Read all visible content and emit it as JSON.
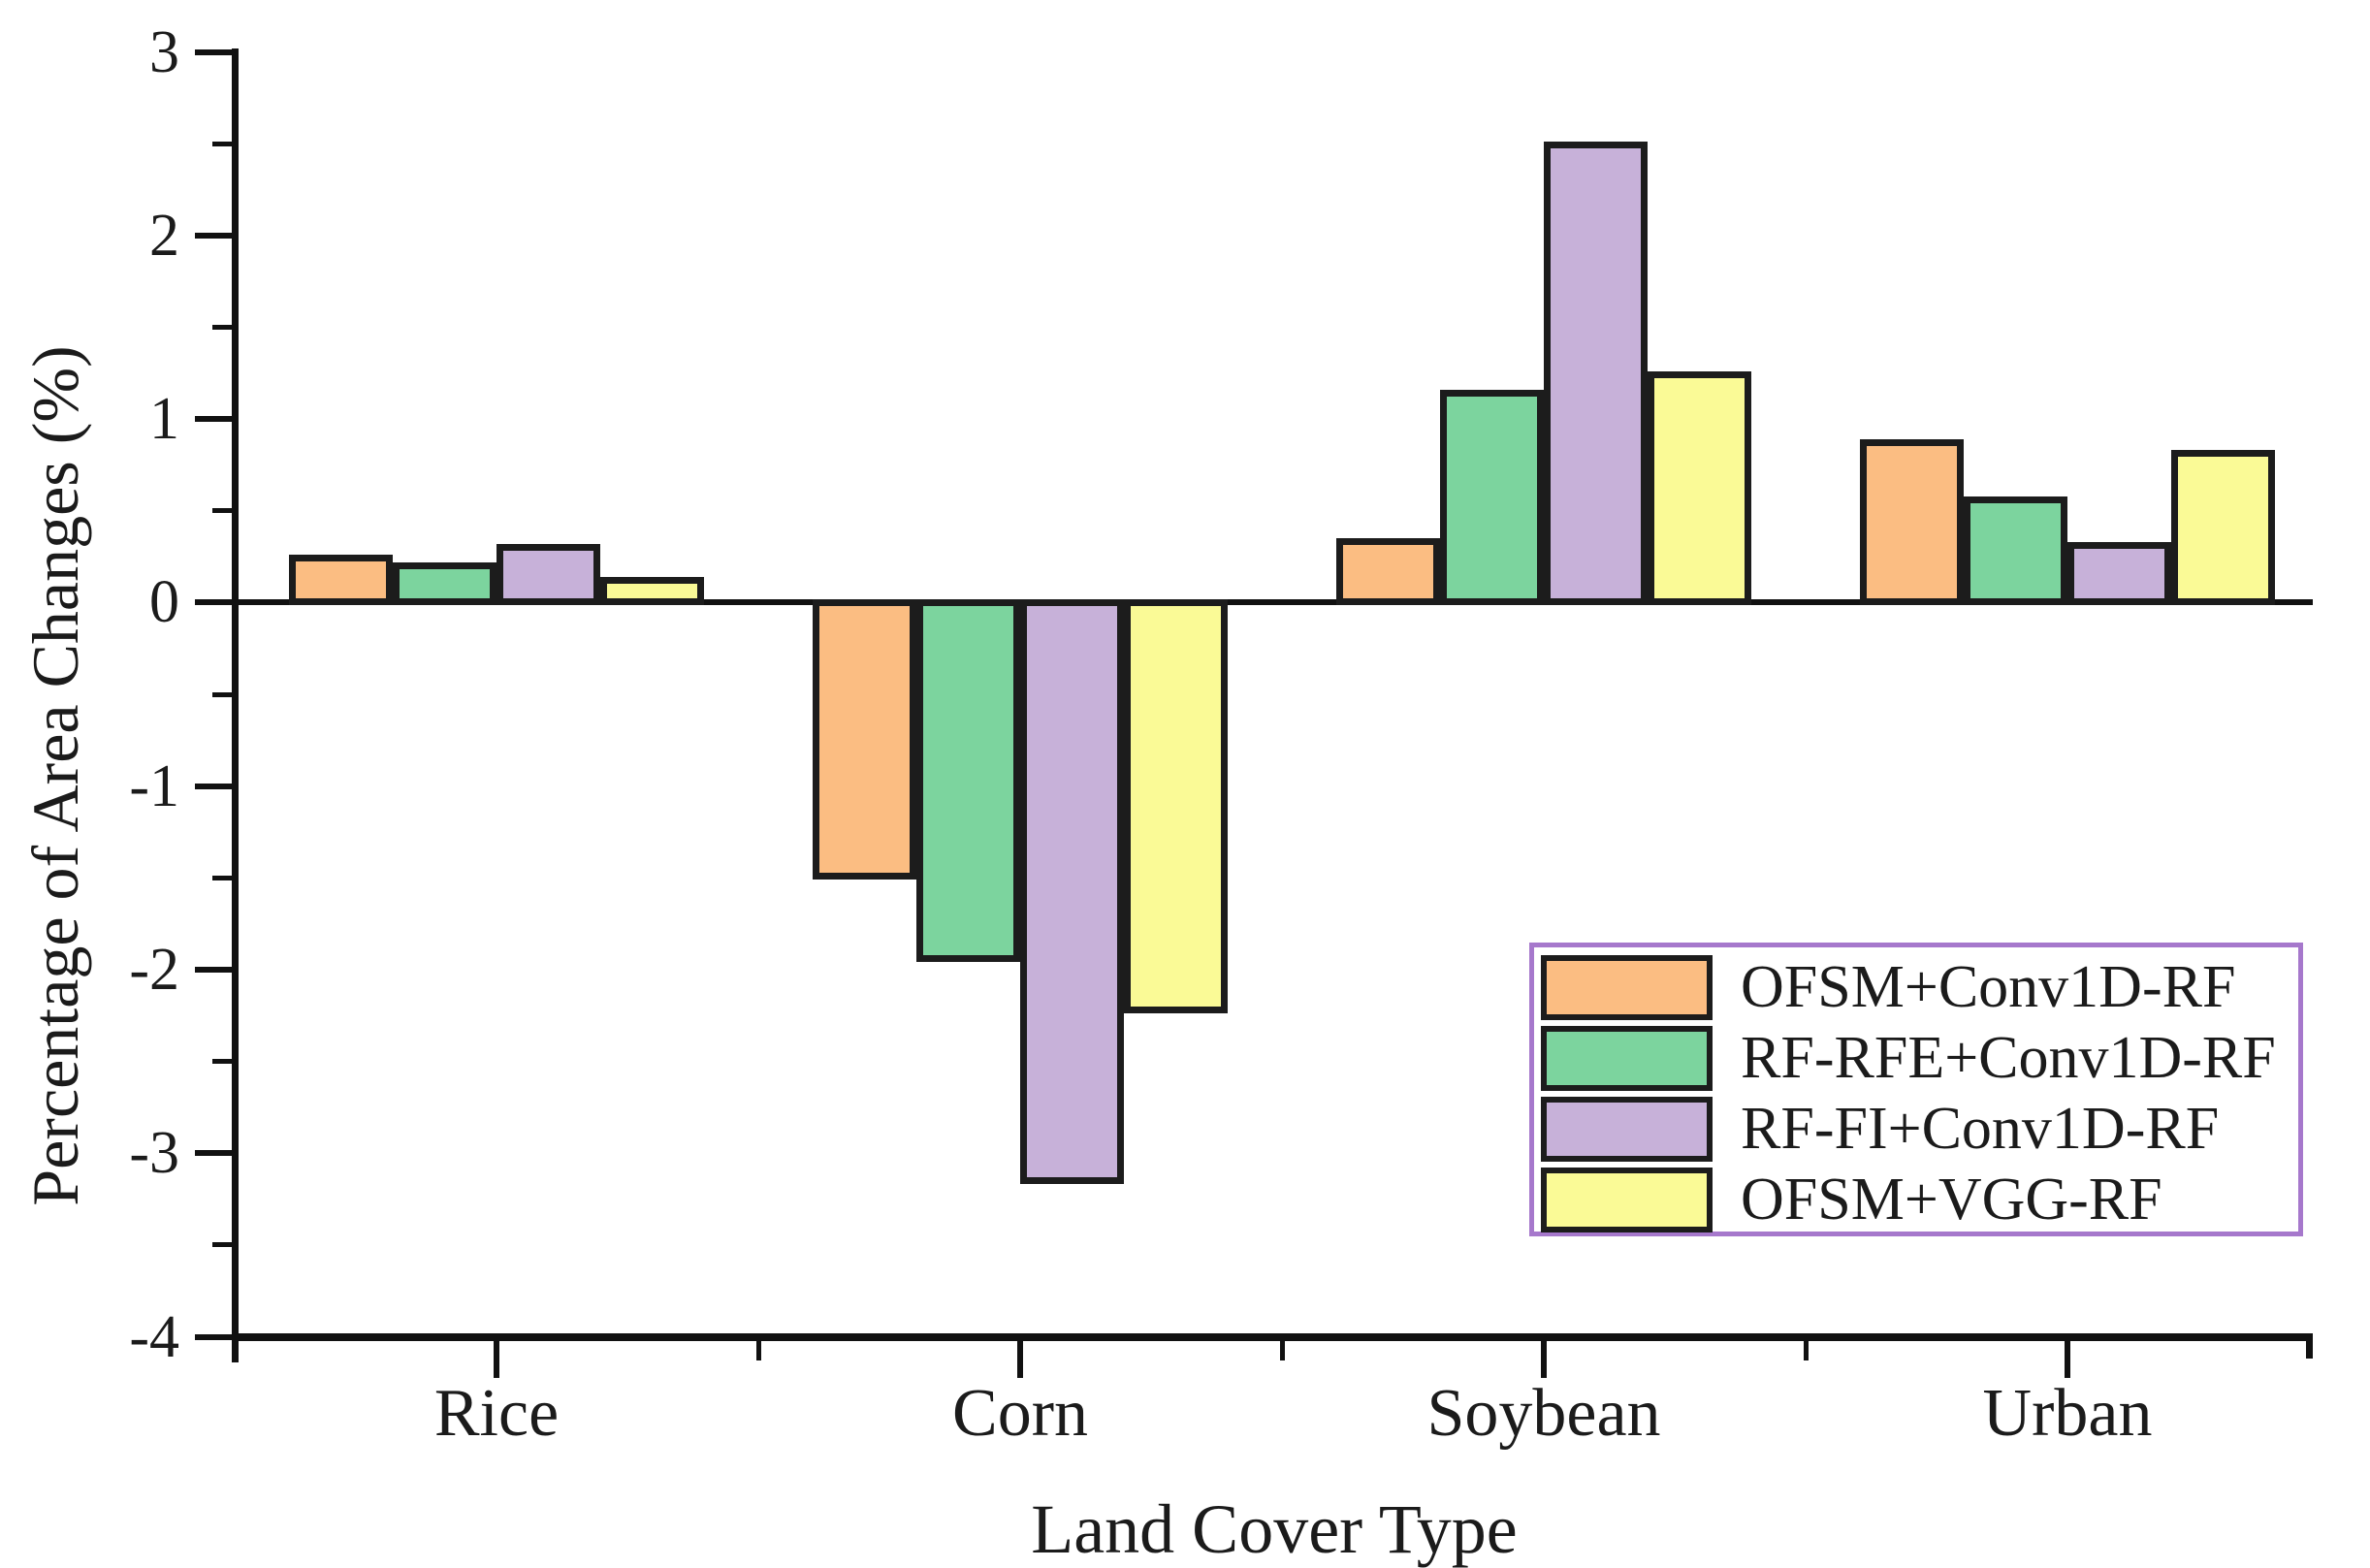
{
  "figure": {
    "background": "#ffffff",
    "text_color": "#1b1b1b",
    "axis_color": "#111111"
  },
  "chart_data": {
    "type": "bar",
    "title": "",
    "xlabel": "Land Cover Type",
    "ylabel": "Percentage of Area Changes (%)",
    "categories": [
      "Rice",
      "Corn",
      "Soybean",
      "Urban"
    ],
    "series": [
      {
        "name": "OFSM+Conv1D-RF",
        "color": "#FBBD82",
        "values": [
          0.26,
          -1.51,
          0.35,
          0.89
        ]
      },
      {
        "name": "RF-RFE+Conv1D-RF",
        "color": "#7CD49E",
        "values": [
          0.22,
          -1.96,
          1.16,
          0.58
        ]
      },
      {
        "name": "RF-FI+Conv1D-RF",
        "color": "#C7B1D9",
        "values": [
          0.32,
          -3.17,
          2.51,
          0.33
        ]
      },
      {
        "name": "OFSM+VGG-RF",
        "color": "#FAFA96",
        "values": [
          0.14,
          -2.24,
          1.26,
          0.83
        ]
      }
    ],
    "ylim": [
      -4,
      3
    ],
    "y_major_ticks": [
      3,
      2,
      1,
      0,
      -1,
      -2,
      -3,
      -4
    ],
    "y_tick_labels": [
      "3",
      "2",
      "1",
      "0",
      "-1",
      "-2",
      "-3",
      "-4"
    ],
    "y_minor_ticks": [
      2.5,
      1.5,
      0.5,
      -0.5,
      -1.5,
      -2.5,
      -3.5
    ],
    "grid": false,
    "legend_position": "lower-right",
    "bar_border_color": "#1c1c1c",
    "legend_border_color": "#A678CC"
  }
}
